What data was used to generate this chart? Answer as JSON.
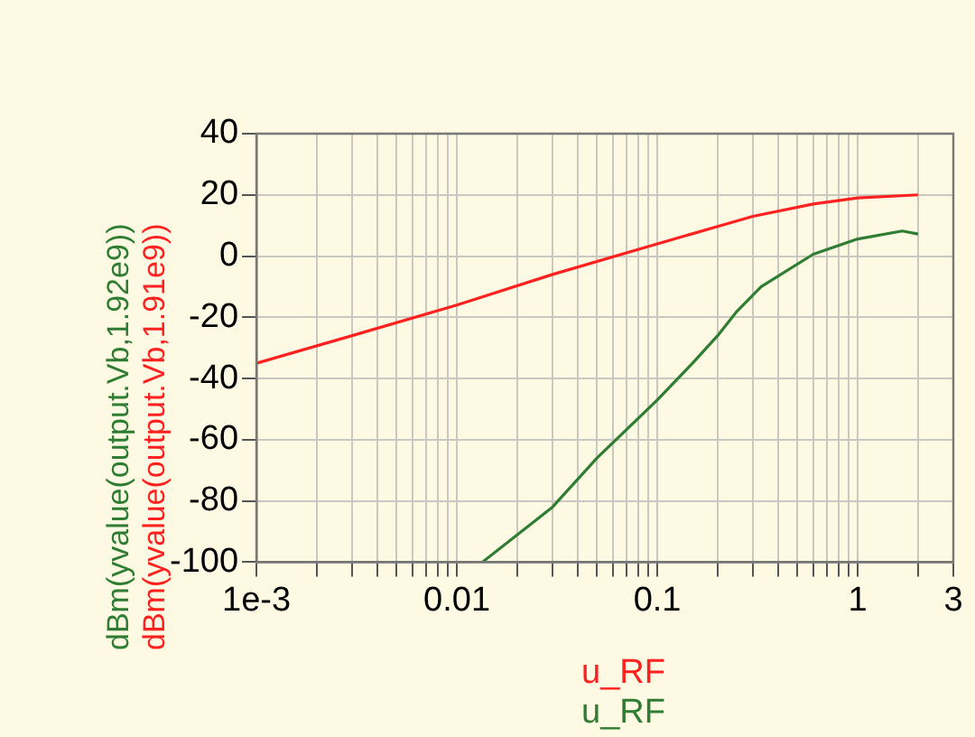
{
  "chart_data": {
    "type": "line",
    "xlabel": "u_RF",
    "log": "x",
    "grid": true,
    "marker": "none",
    "line_style": "solid",
    "xlim": [
      0.001,
      3
    ],
    "ylim": [
      -100,
      40
    ],
    "xticks": [
      {
        "value": 0.001,
        "label": "1e-3"
      },
      {
        "value": 0.002,
        "label": null
      },
      {
        "value": 0.003,
        "label": null
      },
      {
        "value": 0.004,
        "label": null
      },
      {
        "value": 0.005,
        "label": null
      },
      {
        "value": 0.006,
        "label": null
      },
      {
        "value": 0.007,
        "label": null
      },
      {
        "value": 0.008,
        "label": null
      },
      {
        "value": 0.009,
        "label": null
      },
      0.01,
      {
        "value": 0.02,
        "label": null
      },
      {
        "value": 0.03,
        "label": null
      },
      {
        "value": 0.04,
        "label": null
      },
      {
        "value": 0.05,
        "label": null
      },
      {
        "value": 0.06,
        "label": null
      },
      {
        "value": 0.07,
        "label": null
      },
      {
        "value": 0.08,
        "label": null
      },
      {
        "value": 0.09,
        "label": null
      },
      0.1,
      {
        "value": 0.2,
        "label": null
      },
      {
        "value": 0.3,
        "label": null
      },
      {
        "value": 0.4,
        "label": null
      },
      {
        "value": 0.5,
        "label": null
      },
      {
        "value": 0.6,
        "label": null
      },
      {
        "value": 0.7,
        "label": null
      },
      {
        "value": 0.8,
        "label": null
      },
      {
        "value": 0.9,
        "label": null
      },
      1,
      {
        "value": 2,
        "label": null
      },
      3
    ],
    "yticks": [
      -100,
      -80,
      -60,
      -40,
      -20,
      0,
      20,
      40
    ],
    "series": [
      {
        "name": "dBm(yvalue(output.Vb,1.92e9))",
        "color": "#2e7d32",
        "x": [
          0.0134,
          0.03,
          0.05,
          0.1,
          0.15,
          0.2,
          0.25,
          0.33,
          0.6,
          1,
          1.67,
          2
        ],
        "values": [
          -100,
          -82,
          -66,
          -47,
          -35,
          -26,
          -18,
          -10,
          0.6,
          5.6,
          8.2,
          7.2
        ]
      },
      {
        "name": "dBm(yvalue(output.Vb,1.91e9))",
        "color": "#ff2020",
        "x": [
          0.001,
          0.003,
          0.01,
          0.03,
          0.1,
          0.3,
          0.6,
          1,
          2
        ],
        "values": [
          -35,
          -26,
          -16,
          -6,
          4,
          13,
          17,
          19,
          20
        ]
      }
    ]
  }
}
